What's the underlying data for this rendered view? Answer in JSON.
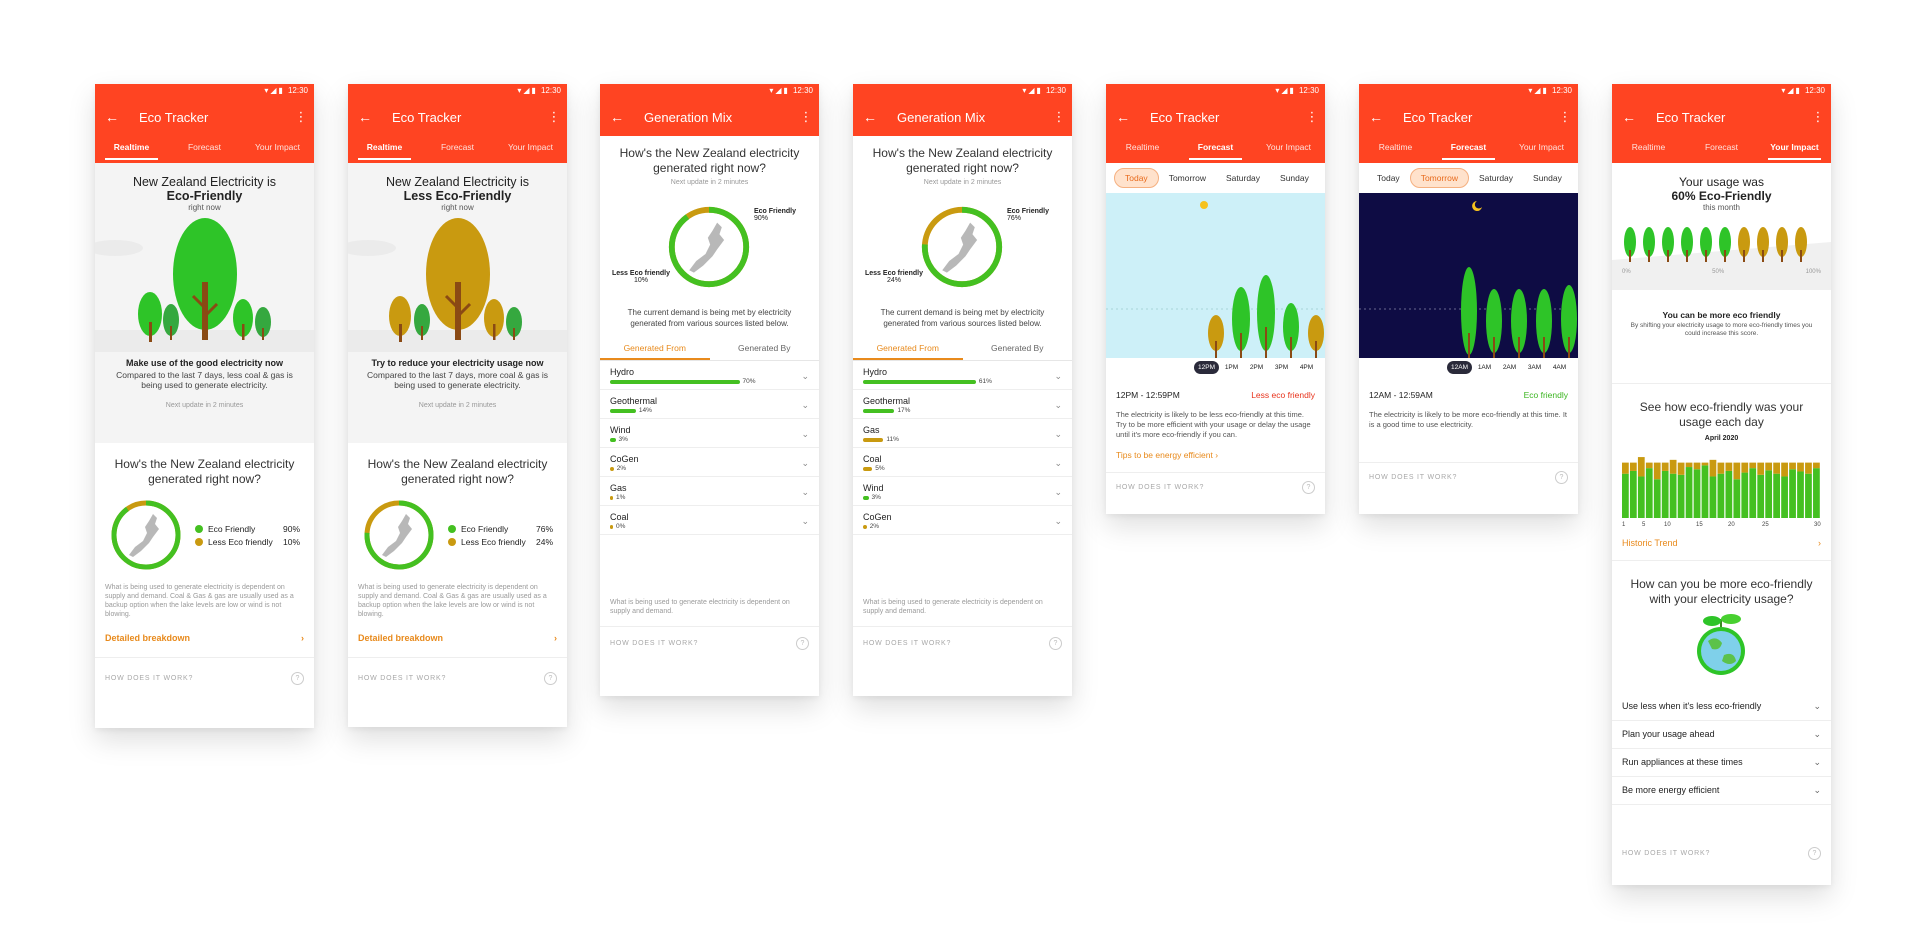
{
  "status": {
    "time": "12:30"
  },
  "screens": [
    {
      "title": "Eco Tracker",
      "tabs": [
        "Realtime",
        "Forecast",
        "Your Impact"
      ],
      "headline_1": "New Zealand Electricity is",
      "headline_2": "Eco-Friendly",
      "headline_3": "right now",
      "message": "Make use of the good electricity now",
      "message_sub": "Compared to the last 7 days, less coal & gas is being used to generate electricity.",
      "next_update": "Next update in 2 minutes",
      "section_title": "How's the New Zealand electricity generated right now?",
      "legend": [
        {
          "label": "Eco Friendly",
          "pct": "90%",
          "color": "#44c021"
        },
        {
          "label": "Less Eco friendly",
          "pct": "10%",
          "color": "#c99a10"
        }
      ],
      "eco_fraction": 0.9,
      "fine_print": "What is being used to generate electricity is dependent on supply and demand. Coal & Gas & gas are usually used as a backup option when the lake levels are low or wind is not blowing.",
      "link": "Detailed breakdown",
      "how": "HOW DOES IT WORK?"
    },
    {
      "title": "Eco Tracker",
      "tabs": [
        "Realtime",
        "Forecast",
        "Your Impact"
      ],
      "headline_1": "New Zealand Electricity is",
      "headline_2": "Less Eco-Friendly",
      "headline_3": "right now",
      "message": "Try to reduce your electricity usage now",
      "message_sub": "Compared to the last 7 days, more coal & gas is being used to generate electricity.",
      "next_update": "Next update in 2 minutes",
      "section_title": "How's the New Zealand electricity generated right now?",
      "legend": [
        {
          "label": "Eco Friendly",
          "pct": "76%",
          "color": "#44c021"
        },
        {
          "label": "Less Eco friendly",
          "pct": "24%",
          "color": "#c99a10"
        }
      ],
      "eco_fraction": 0.76,
      "fine_print": "What is being used to generate electricity is dependent on supply and demand. Coal & Gas & gas are usually used as a backup option when the lake levels are low or wind is not blowing.",
      "link": "Detailed breakdown",
      "how": "HOW DOES IT WORK?"
    },
    {
      "title": "Generation Mix",
      "section_title": "How's the New Zealand electricity generated right now?",
      "next_update": "Next update in 2 minutes",
      "eco_label": "Eco Friendly",
      "eco_pct": "90%",
      "less_label": "Less Eco friendly",
      "less_pct": "10%",
      "eco_fraction": 0.9,
      "demand_text": "The current demand is being met by electricity generated from various sources listed below.",
      "gen_tabs": [
        "Generated From",
        "Generated By"
      ],
      "sources": [
        {
          "name": "Hydro",
          "pct": "70%",
          "value": 70,
          "color": "#44c021"
        },
        {
          "name": "Geothermal",
          "pct": "14%",
          "value": 14,
          "color": "#44c021"
        },
        {
          "name": "Wind",
          "pct": "3%",
          "value": 3,
          "color": "#44c021"
        },
        {
          "name": "CoGen",
          "pct": "2%",
          "value": 2,
          "color": "#c99a10"
        },
        {
          "name": "Gas",
          "pct": "1%",
          "value": 1,
          "color": "#c99a10"
        },
        {
          "name": "Coal",
          "pct": "0%",
          "value": 0.4,
          "color": "#c99a10"
        }
      ],
      "fine_print": "What is being used to generate electricity is dependent on supply and demand.",
      "how": "HOW DOES IT WORK?"
    },
    {
      "title": "Generation Mix",
      "section_title": "How's the New Zealand electricity generated right now?",
      "next_update": "Next update in 2 minutes",
      "eco_label": "Eco Friendly",
      "eco_pct": "76%",
      "less_label": "Less Eco friendly",
      "less_pct": "24%",
      "eco_fraction": 0.76,
      "demand_text": "The current demand is being met by electricity generated from various sources listed below.",
      "gen_tabs": [
        "Generated From",
        "Generated By"
      ],
      "sources": [
        {
          "name": "Hydro",
          "pct": "61%",
          "value": 61,
          "color": "#44c021"
        },
        {
          "name": "Geothermal",
          "pct": "17%",
          "value": 17,
          "color": "#44c021"
        },
        {
          "name": "Gas",
          "pct": "11%",
          "value": 11,
          "color": "#c99a10"
        },
        {
          "name": "Coal",
          "pct": "5%",
          "value": 5,
          "color": "#c99a10"
        },
        {
          "name": "Wind",
          "pct": "3%",
          "value": 3,
          "color": "#44c021"
        },
        {
          "name": "CoGen",
          "pct": "2%",
          "value": 2,
          "color": "#c99a10"
        }
      ],
      "fine_print": "What is being used to generate electricity is dependent on supply and demand.",
      "how": "HOW DOES IT WORK?"
    },
    {
      "title": "Eco Tracker",
      "tabs": [
        "Realtime",
        "Forecast",
        "Your Impact"
      ],
      "days": [
        "Today",
        "Tomorrow",
        "Saturday",
        "Sunday"
      ],
      "active_day": 0,
      "times": [
        "12PM",
        "1PM",
        "2PM",
        "3PM",
        "4PM"
      ],
      "slot": "12PM - 12:59PM",
      "status": "Less eco friendly",
      "status_color": "#e8331c",
      "desc": "The electricity is likely to be less eco-friendly at this time. Try to be more efficient with your usage or delay the usage until it's more eco-friendly if you can.",
      "tips": "Tips to be energy efficient",
      "how": "HOW DOES IT WORK?"
    },
    {
      "title": "Eco Tracker",
      "tabs": [
        "Realtime",
        "Forecast",
        "Your Impact"
      ],
      "days": [
        "Today",
        "Tomorrow",
        "Saturday",
        "Sunday"
      ],
      "active_day": 1,
      "times": [
        "12AM",
        "1AM",
        "2AM",
        "3AM",
        "4AM"
      ],
      "slot": "12AM - 12:59AM",
      "status": "Eco friendly",
      "status_color": "#3cb521",
      "desc": "The electricity is likely to be more eco-friendly at this time. It is a good time to use electricity.",
      "how": "HOW DOES IT WORK?"
    },
    {
      "title": "Eco Tracker",
      "tabs": [
        "Realtime",
        "Forecast",
        "Your Impact"
      ],
      "usage_1": "Your usage was",
      "usage_2": "60% Eco-Friendly",
      "usage_3": "this month",
      "scale": [
        "0%",
        "50%",
        "100%"
      ],
      "more_title": "You can be more eco friendly",
      "more_sub": "By shifting your electricity usage to more eco-friendly times you could increase this score.",
      "see_title": "See how eco-friendly was your usage each day",
      "month": "April 2020",
      "xticks": [
        "1",
        "5",
        "10",
        "15",
        "20",
        "25",
        "30"
      ],
      "historic": "Historic Trend",
      "how_title": "How can you be more eco-friendly with your electricity usage?",
      "tips": [
        "Use less when it's less eco-friendly",
        "Plan your usage ahead",
        "Run appliances at these times",
        "Be more energy efficient"
      ],
      "how": "HOW DOES IT WORK?"
    }
  ],
  "chart_data": {
    "type": "bar",
    "title": "April 2020",
    "categories": [
      "1",
      "2",
      "3",
      "4",
      "5",
      "6",
      "7",
      "8",
      "9",
      "10",
      "11",
      "12",
      "13",
      "14",
      "15",
      "16",
      "17",
      "18",
      "19",
      "20",
      "21",
      "22",
      "23",
      "24",
      "25"
    ],
    "series": [
      {
        "name": "",
        "values": [
          80,
          85,
          75,
          90,
          70,
          85,
          80,
          78,
          92,
          88,
          95,
          75,
          80,
          85,
          70,
          82,
          90,
          78,
          86,
          80,
          75,
          88,
          84,
          80,
          90
        ]
      },
      {
        "name": "",
        "values": [
          20,
          15,
          35,
          10,
          30,
          15,
          25,
          22,
          8,
          12,
          5,
          30,
          20,
          15,
          30,
          18,
          10,
          22,
          14,
          20,
          25,
          12,
          16,
          20,
          10
        ]
      }
    ],
    "xlabel": "",
    "ylabel": "",
    "ylim": [
      0,
      130
    ]
  }
}
